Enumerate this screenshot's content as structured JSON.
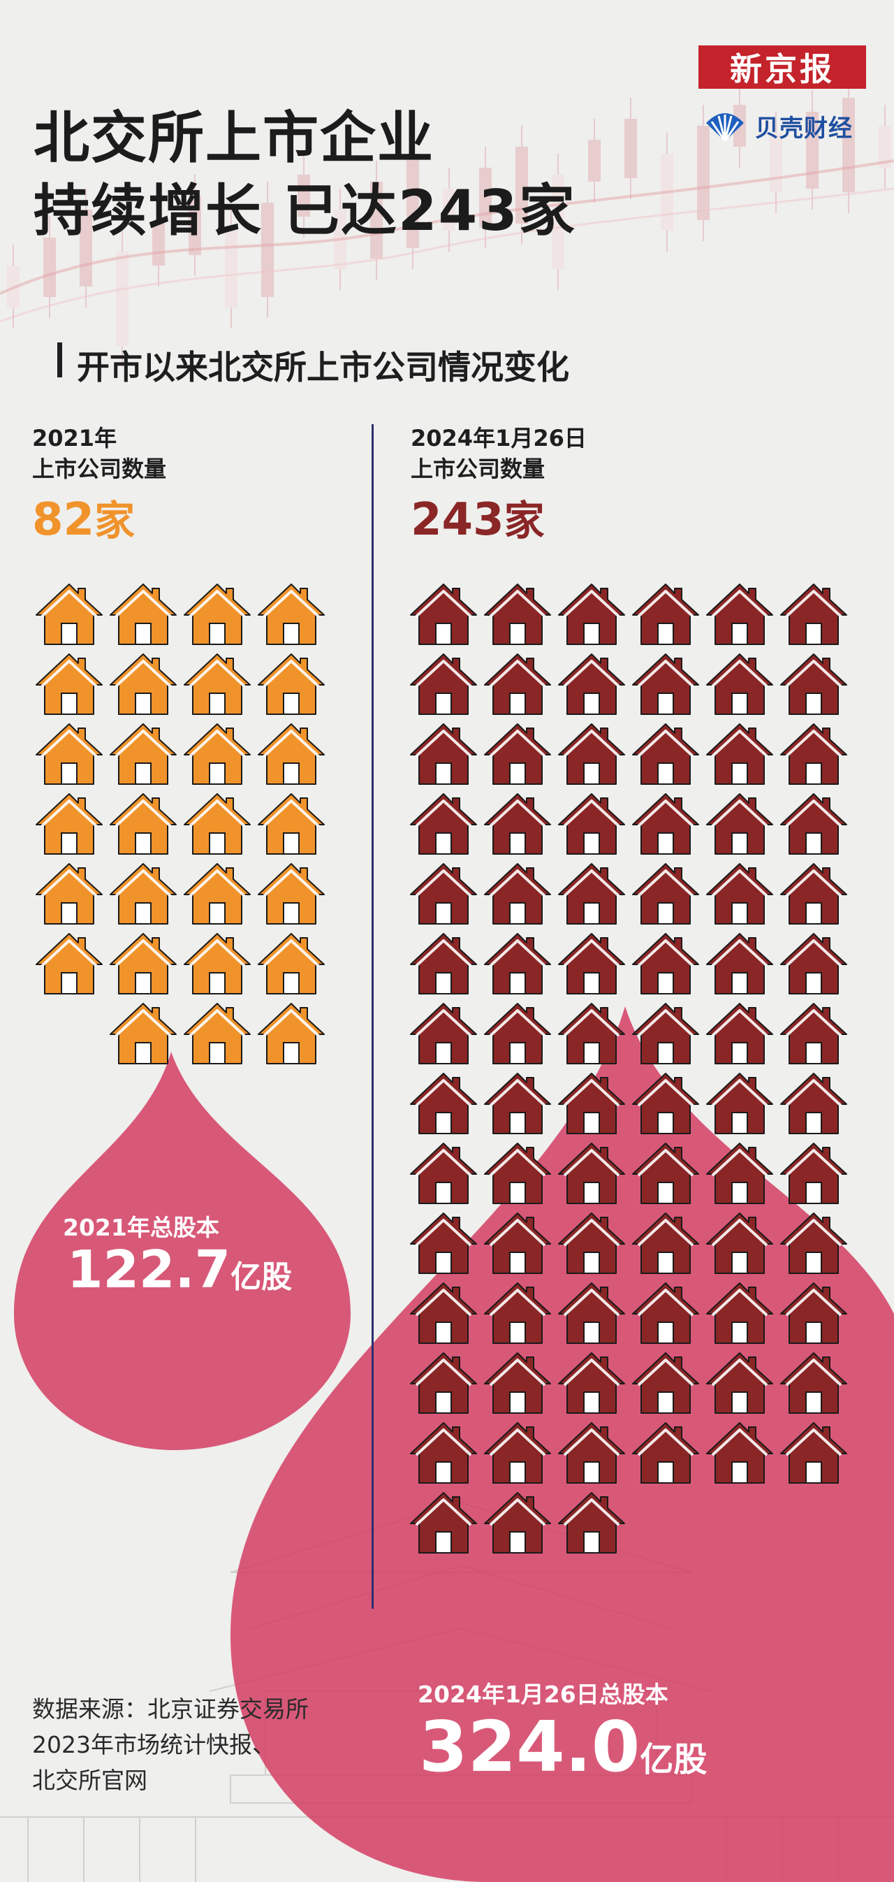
{
  "masthead": {
    "newspaper": "新京报",
    "brand": "贝壳财经"
  },
  "title": {
    "line1": "北交所上市企业",
    "line2": "持续增长 已达243家"
  },
  "subtitle": "开市以来北交所上市公司情况变化",
  "left_column": {
    "date": "2021年",
    "label": "上市公司数量",
    "count_number": "82",
    "count_unit": "家",
    "house_icon_count": 27,
    "color": "#f0932b",
    "total_label": "2021年总股本",
    "total_value": "122.7",
    "total_unit": "亿股"
  },
  "right_column": {
    "date": "2024年1月26日",
    "label": "上市公司数量",
    "count_number": "243",
    "count_unit": "家",
    "house_icon_count": 81,
    "color": "#8b2626",
    "total_label": "2024年1月26日总股本",
    "total_value": "324.0",
    "total_unit": "亿股"
  },
  "source": {
    "line1": "数据来源：北京证券交易所",
    "line2": "2023年市场统计快报、",
    "line3": "北交所官网"
  },
  "colors": {
    "drop": "#d43d63",
    "divider": "#2a2f6e",
    "masthead": "#c4232b",
    "brand_blue": "#1f4fa0"
  }
}
